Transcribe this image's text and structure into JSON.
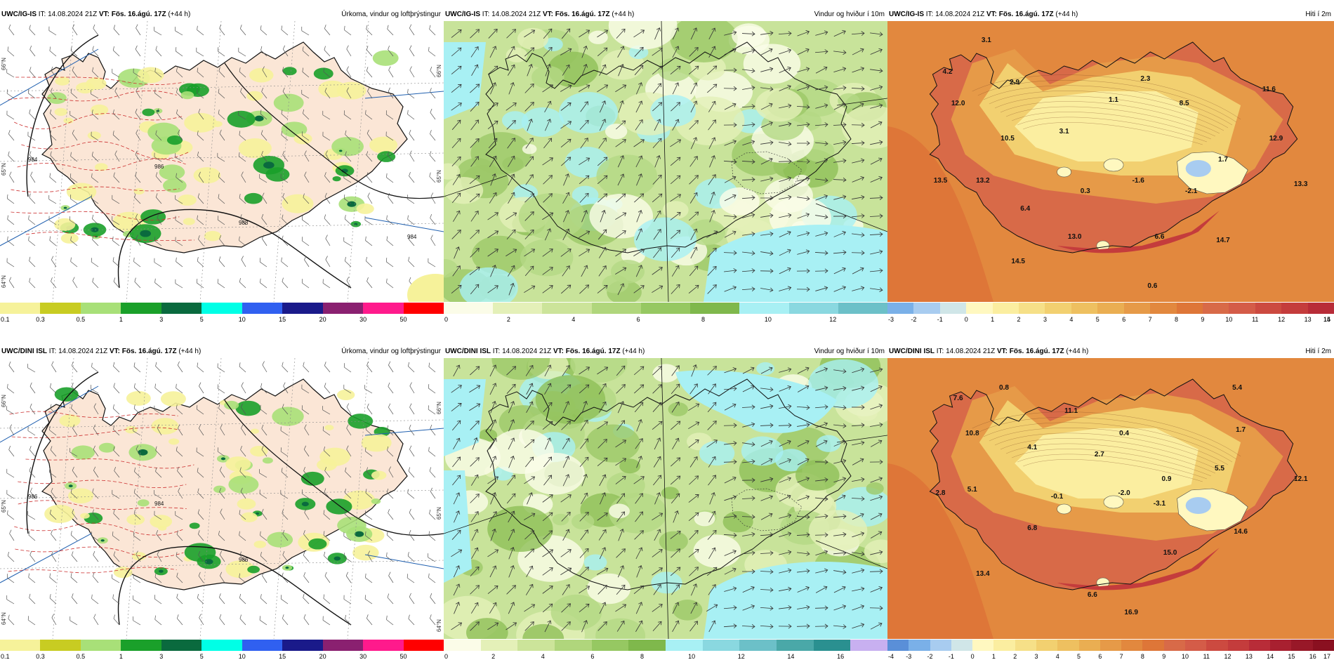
{
  "panels": [
    {
      "id": "p1",
      "type": "precip",
      "model": "UWC/IG-IS",
      "it": "14.08.2024 21Z",
      "vt": "Fös. 16.ágú. 17Z",
      "lead": "(+44 h)",
      "title": "Úrkoma, vindur og loftþrýstingur",
      "isobars": [
        "984",
        "986",
        "988",
        "984"
      ],
      "lat_labels": [
        "66°N",
        "65°N",
        "64°N"
      ],
      "colorbar": {
        "colors": [
          "#f6f29a",
          "#c8cc22",
          "#a8e078",
          "#1aa02a",
          "#0a6a3e",
          "#00ffe6",
          "#3060f0",
          "#1a1a8a",
          "#8a2070",
          "#ff1a8c",
          "#ff0000"
        ],
        "labels": [
          "0.1",
          "0.3",
          "0.5",
          "1",
          "3",
          "5",
          "10",
          "15",
          "20",
          "30",
          "50"
        ]
      }
    },
    {
      "id": "p2",
      "type": "wind",
      "model": "UWC/IG-IS",
      "it": "14.08.2024 21Z",
      "vt": "Fös. 16.ágú. 17Z",
      "lead": "(+44 h)",
      "title": "Vindur og hviður í 10m",
      "colorbar": {
        "colors": [
          "#fbfce8",
          "#e4f0b8",
          "#cce49a",
          "#b0d67c",
          "#96c862",
          "#7fb84c",
          "#a8f0f4",
          "#8ad8e0",
          "#6cc0c8"
        ],
        "labels": [
          "0",
          "2",
          "4",
          "6",
          "8",
          "10",
          "12"
        ]
      }
    },
    {
      "id": "p3",
      "type": "temp",
      "model": "UWC/IG-IS",
      "it": "14.08.2024 21Z",
      "vt": "Fös. 16.ágú. 17Z",
      "lead": "(+44 h)",
      "title": "Hiti í 2m",
      "temps": [
        "3.1",
        "4.2",
        "2.9",
        "2.3",
        "12.0",
        "1.1",
        "8.5",
        "11.6",
        "3.1",
        "10.5",
        "12.9",
        "1.7",
        "13.5",
        "13.2",
        "0.3",
        "-1.6",
        "-2.1",
        "13.3",
        "6.4",
        "13.0",
        "6.6",
        "14.7",
        "14.5",
        "0.6"
      ],
      "colorbar": {
        "colors": [
          "#7ab0e8",
          "#a8ccf0",
          "#d0e6e8",
          "#fff8c0",
          "#fbeea0",
          "#f6e088",
          "#f2d070",
          "#eec060",
          "#eaae52",
          "#e69a48",
          "#e2883e",
          "#de7638",
          "#d86a48",
          "#d45c48",
          "#cc4a40",
          "#c43c3c",
          "#b82c38"
        ],
        "labels": [
          "-3",
          "-2",
          "-1",
          "0",
          "1",
          "2",
          "3",
          "4",
          "5",
          "6",
          "7",
          "8",
          "9",
          "10",
          "11",
          "12",
          "13",
          "14",
          "15"
        ]
      }
    },
    {
      "id": "p4",
      "type": "precip",
      "model": "UWC/DINI ISL",
      "it": "14.08.2024 21Z",
      "vt": "Fös. 16.ágú. 17Z",
      "lead": "(+44 h)",
      "title": "Úrkoma, vindur og loftþrýstingur",
      "isobars": [
        "986",
        "984",
        "986"
      ],
      "lat_labels": [
        "66°N",
        "65°N",
        "64°N"
      ],
      "colorbar": {
        "colors": [
          "#f6f29a",
          "#c8cc22",
          "#a8e078",
          "#1aa02a",
          "#0a6a3e",
          "#00ffe6",
          "#3060f0",
          "#1a1a8a",
          "#8a2070",
          "#ff1a8c",
          "#ff0000"
        ],
        "labels": [
          "0.1",
          "0.3",
          "0.5",
          "1",
          "3",
          "5",
          "10",
          "15",
          "20",
          "30",
          "50"
        ]
      }
    },
    {
      "id": "p5",
      "type": "wind",
      "model": "UWC/DINI ISL",
      "it": "14.08.2024 21Z",
      "vt": "Fös. 16.ágú. 17Z",
      "lead": "(+44 h)",
      "title": "Vindur og hviður í 10m",
      "colorbar": {
        "colors": [
          "#fbfce8",
          "#e4f0b8",
          "#cce49a",
          "#b0d67c",
          "#96c862",
          "#7fb84c",
          "#a8f0f4",
          "#8ad8e0",
          "#6cc0c8",
          "#4aa8a8",
          "#2a9090",
          "#c8b0f0"
        ],
        "labels": [
          "0",
          "2",
          "4",
          "6",
          "8",
          "10",
          "12",
          "14",
          "16"
        ]
      }
    },
    {
      "id": "p6",
      "type": "temp",
      "model": "UWC/DINI ISL",
      "it": "14.08.2024 21Z",
      "vt": "Fös. 16.ágú. 17Z",
      "lead": "(+44 h)",
      "title": "Hiti í 2m",
      "temps": [
        "0.8",
        "5.4",
        "7.6",
        "11.1",
        "1.7",
        "0.4",
        "10.8",
        "4.1",
        "2.7",
        "5.5",
        "0.9",
        "12.1",
        "5.1",
        "-0.1",
        "-2.0",
        "-3.1",
        "2.8",
        "6.8",
        "14.6",
        "15.0",
        "13.4",
        "6.6",
        "16.9"
      ],
      "colorbar": {
        "colors": [
          "#5a8fd8",
          "#7ab0e8",
          "#a8ccf0",
          "#d0e6e8",
          "#fff8c0",
          "#fbeea0",
          "#f6e088",
          "#f2d070",
          "#eec060",
          "#eaae52",
          "#e69a48",
          "#e2883e",
          "#de7638",
          "#d86a48",
          "#d45c48",
          "#cc4a40",
          "#c43c3c",
          "#b82c38",
          "#a82030",
          "#981828",
          "#8a1020"
        ],
        "labels": [
          "-4",
          "-3",
          "-2",
          "-1",
          "0",
          "1",
          "2",
          "3",
          "4",
          "5",
          "6",
          "7",
          "8",
          "9",
          "10",
          "11",
          "12",
          "13",
          "14",
          "15",
          "16",
          "17"
        ]
      }
    }
  ]
}
